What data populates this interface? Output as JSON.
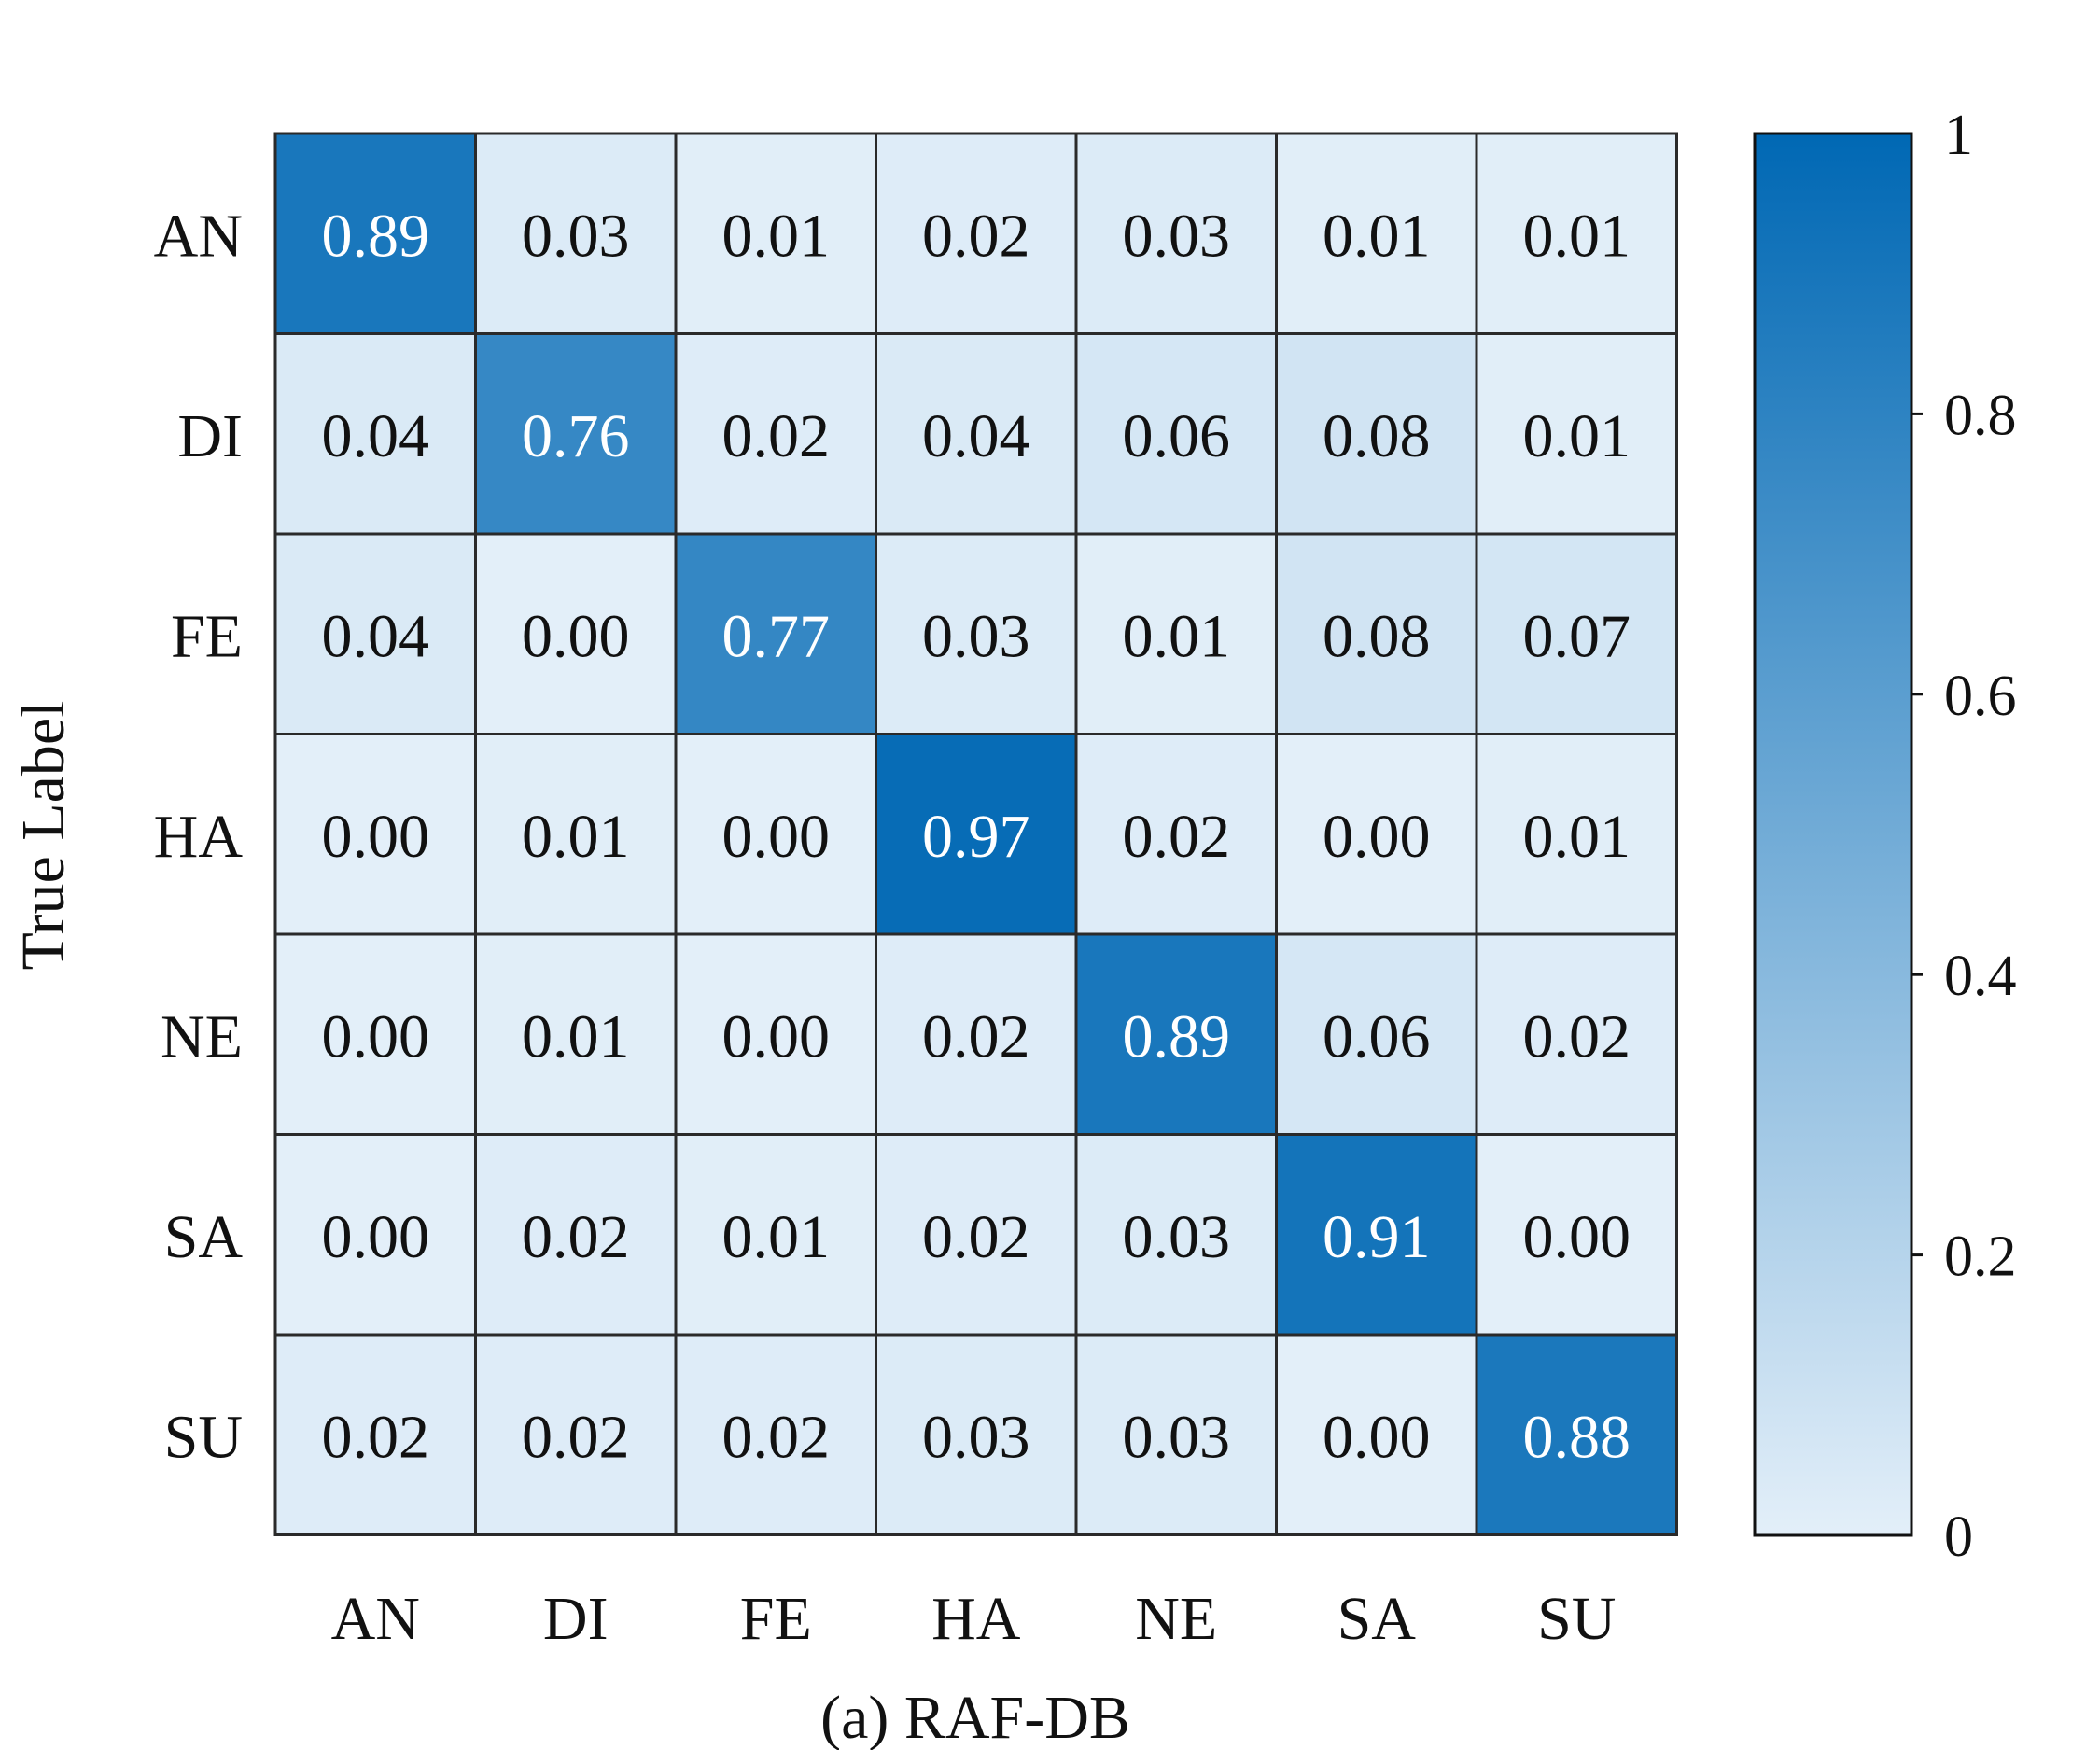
{
  "chart_data": {
    "type": "heatmap",
    "caption": "(a) RAF-DB",
    "ylabel": "True Label",
    "xlabel": "",
    "row_labels": [
      "AN",
      "DI",
      "FE",
      "HA",
      "NE",
      "SA",
      "SU"
    ],
    "col_labels": [
      "AN",
      "DI",
      "FE",
      "HA",
      "NE",
      "SA",
      "SU"
    ],
    "values": [
      [
        0.89,
        0.03,
        0.01,
        0.02,
        0.03,
        0.01,
        0.01
      ],
      [
        0.04,
        0.76,
        0.02,
        0.04,
        0.06,
        0.08,
        0.01
      ],
      [
        0.04,
        0.0,
        0.77,
        0.03,
        0.01,
        0.08,
        0.07
      ],
      [
        0.0,
        0.01,
        0.0,
        0.97,
        0.02,
        0.0,
        0.01
      ],
      [
        0.0,
        0.01,
        0.0,
        0.02,
        0.89,
        0.06,
        0.02
      ],
      [
        0.0,
        0.02,
        0.01,
        0.02,
        0.03,
        0.91,
        0.0
      ],
      [
        0.02,
        0.02,
        0.02,
        0.03,
        0.03,
        0.0,
        0.88
      ]
    ],
    "colorbar": {
      "range": [
        0,
        1
      ],
      "ticks": [
        0,
        0.2,
        0.4,
        0.6,
        0.8,
        1
      ],
      "tick_labels": [
        "0",
        "0.2",
        "0.4",
        "0.6",
        "0.8",
        "1"
      ]
    },
    "colors": {
      "low": "#e3eff9",
      "high": "#0068b4",
      "grid_line": "#2a2a2a",
      "text_dark": "#111111",
      "text_light": "#ffffff"
    },
    "light_text_threshold": 0.5
  }
}
